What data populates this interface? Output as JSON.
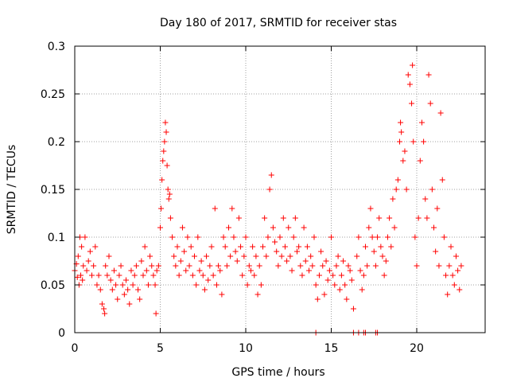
{
  "chart_data": {
    "type": "scatter",
    "title": "Day 180 of 2017, SRMTID for receiver stas",
    "xlabel": "GPS time / hours",
    "ylabel": "SRMTID / TECUs",
    "xlim": [
      0,
      24
    ],
    "ylim": [
      0,
      0.3
    ],
    "xticks": [
      0,
      5,
      10,
      15,
      20
    ],
    "xtick_labels": [
      "0",
      "5",
      "10",
      "15",
      "20"
    ],
    "yticks": [
      0,
      0.05,
      0.1,
      0.15,
      0.2,
      0.25,
      0.3
    ],
    "ytick_labels": [
      "0",
      "0.05",
      "0.1",
      "0.15",
      "0.2",
      "0.25",
      "0.3"
    ],
    "grid": true,
    "marker": "+",
    "color": "#ff0000",
    "series": [
      {
        "name": "SRMTID",
        "points": [
          [
            0.0,
            0.065
          ],
          [
            0.1,
            0.072
          ],
          [
            0.15,
            0.058
          ],
          [
            0.2,
            0.08
          ],
          [
            0.25,
            0.05
          ],
          [
            0.3,
            0.1
          ],
          [
            0.35,
            0.06
          ],
          [
            0.4,
            0.09
          ],
          [
            0.45,
            0.055
          ],
          [
            0.5,
            0.07
          ],
          [
            0.6,
            0.1
          ],
          [
            0.7,
            0.065
          ],
          [
            0.8,
            0.075
          ],
          [
            0.9,
            0.085
          ],
          [
            1.0,
            0.06
          ],
          [
            1.1,
            0.07
          ],
          [
            1.2,
            0.09
          ],
          [
            1.3,
            0.05
          ],
          [
            1.4,
            0.06
          ],
          [
            1.5,
            0.045
          ],
          [
            1.6,
            0.03
          ],
          [
            1.7,
            0.025
          ],
          [
            1.75,
            0.02
          ],
          [
            1.8,
            0.07
          ],
          [
            1.9,
            0.06
          ],
          [
            2.0,
            0.08
          ],
          [
            2.1,
            0.055
          ],
          [
            2.2,
            0.045
          ],
          [
            2.3,
            0.065
          ],
          [
            2.4,
            0.05
          ],
          [
            2.5,
            0.035
          ],
          [
            2.6,
            0.06
          ],
          [
            2.7,
            0.07
          ],
          [
            2.8,
            0.05
          ],
          [
            2.9,
            0.04
          ],
          [
            3.0,
            0.055
          ],
          [
            3.1,
            0.045
          ],
          [
            3.2,
            0.03
          ],
          [
            3.3,
            0.065
          ],
          [
            3.4,
            0.05
          ],
          [
            3.5,
            0.06
          ],
          [
            3.6,
            0.07
          ],
          [
            3.7,
            0.045
          ],
          [
            3.8,
            0.035
          ],
          [
            3.9,
            0.075
          ],
          [
            4.0,
            0.06
          ],
          [
            4.1,
            0.09
          ],
          [
            4.2,
            0.065
          ],
          [
            4.3,
            0.05
          ],
          [
            4.4,
            0.08
          ],
          [
            4.5,
            0.07
          ],
          [
            4.6,
            0.06
          ],
          [
            4.7,
            0.05
          ],
          [
            4.75,
            0.02
          ],
          [
            4.8,
            0.065
          ],
          [
            4.9,
            0.07
          ],
          [
            5.0,
            0.11
          ],
          [
            5.05,
            0.13
          ],
          [
            5.1,
            0.16
          ],
          [
            5.15,
            0.18
          ],
          [
            5.2,
            0.19
          ],
          [
            5.25,
            0.2
          ],
          [
            5.3,
            0.22
          ],
          [
            5.35,
            0.21
          ],
          [
            5.4,
            0.175
          ],
          [
            5.45,
            0.15
          ],
          [
            5.5,
            0.14
          ],
          [
            5.55,
            0.145
          ],
          [
            5.6,
            0.12
          ],
          [
            5.7,
            0.1
          ],
          [
            5.8,
            0.08
          ],
          [
            5.9,
            0.07
          ],
          [
            6.0,
            0.09
          ],
          [
            6.1,
            0.06
          ],
          [
            6.2,
            0.075
          ],
          [
            6.3,
            0.11
          ],
          [
            6.4,
            0.085
          ],
          [
            6.5,
            0.065
          ],
          [
            6.6,
            0.1
          ],
          [
            6.7,
            0.07
          ],
          [
            6.8,
            0.09
          ],
          [
            6.9,
            0.06
          ],
          [
            7.0,
            0.08
          ],
          [
            7.1,
            0.05
          ],
          [
            7.2,
            0.1
          ],
          [
            7.3,
            0.065
          ],
          [
            7.4,
            0.075
          ],
          [
            7.5,
            0.06
          ],
          [
            7.6,
            0.045
          ],
          [
            7.7,
            0.08
          ],
          [
            7.8,
            0.055
          ],
          [
            7.9,
            0.07
          ],
          [
            8.0,
            0.09
          ],
          [
            8.1,
            0.06
          ],
          [
            8.2,
            0.13
          ],
          [
            8.3,
            0.05
          ],
          [
            8.4,
            0.07
          ],
          [
            8.5,
            0.065
          ],
          [
            8.6,
            0.04
          ],
          [
            8.7,
            0.1
          ],
          [
            8.8,
            0.09
          ],
          [
            8.9,
            0.07
          ],
          [
            9.0,
            0.11
          ],
          [
            9.1,
            0.08
          ],
          [
            9.2,
            0.13
          ],
          [
            9.3,
            0.1
          ],
          [
            9.4,
            0.085
          ],
          [
            9.5,
            0.075
          ],
          [
            9.6,
            0.12
          ],
          [
            9.7,
            0.09
          ],
          [
            9.8,
            0.06
          ],
          [
            9.9,
            0.08
          ],
          [
            10.0,
            0.1
          ],
          [
            10.1,
            0.05
          ],
          [
            10.2,
            0.07
          ],
          [
            10.3,
            0.065
          ],
          [
            10.4,
            0.09
          ],
          [
            10.5,
            0.06
          ],
          [
            10.6,
            0.08
          ],
          [
            10.7,
            0.04
          ],
          [
            10.8,
            0.07
          ],
          [
            10.9,
            0.05
          ],
          [
            11.0,
            0.09
          ],
          [
            11.1,
            0.12
          ],
          [
            11.2,
            0.08
          ],
          [
            11.3,
            0.1
          ],
          [
            11.4,
            0.15
          ],
          [
            11.5,
            0.165
          ],
          [
            11.6,
            0.11
          ],
          [
            11.7,
            0.095
          ],
          [
            11.8,
            0.085
          ],
          [
            11.9,
            0.07
          ],
          [
            12.0,
            0.1
          ],
          [
            12.1,
            0.08
          ],
          [
            12.2,
            0.12
          ],
          [
            12.3,
            0.09
          ],
          [
            12.4,
            0.075
          ],
          [
            12.5,
            0.11
          ],
          [
            12.6,
            0.08
          ],
          [
            12.7,
            0.065
          ],
          [
            12.8,
            0.1
          ],
          [
            12.9,
            0.12
          ],
          [
            13.0,
            0.085
          ],
          [
            13.1,
            0.09
          ],
          [
            13.2,
            0.07
          ],
          [
            13.3,
            0.06
          ],
          [
            13.4,
            0.11
          ],
          [
            13.5,
            0.075
          ],
          [
            13.6,
            0.09
          ],
          [
            13.7,
            0.065
          ],
          [
            13.8,
            0.08
          ],
          [
            13.9,
            0.07
          ],
          [
            14.0,
            0.1
          ],
          [
            14.1,
            0.05
          ],
          [
            14.2,
            0.035
          ],
          [
            14.3,
            0.06
          ],
          [
            14.4,
            0.085
          ],
          [
            14.5,
            0.07
          ],
          [
            14.6,
            0.04
          ],
          [
            14.7,
            0.075
          ],
          [
            14.8,
            0.055
          ],
          [
            14.9,
            0.065
          ],
          [
            15.0,
            0.1
          ],
          [
            15.1,
            0.06
          ],
          [
            15.2,
            0.05
          ],
          [
            15.3,
            0.07
          ],
          [
            15.4,
            0.08
          ],
          [
            15.5,
            0.045
          ],
          [
            15.6,
            0.06
          ],
          [
            15.7,
            0.075
          ],
          [
            15.8,
            0.05
          ],
          [
            15.9,
            0.035
          ],
          [
            16.0,
            0.07
          ],
          [
            16.1,
            0.065
          ],
          [
            16.2,
            0.055
          ],
          [
            16.3,
            0.025
          ],
          [
            16.5,
            0.08
          ],
          [
            16.6,
            0.1
          ],
          [
            16.7,
            0.065
          ],
          [
            16.8,
            0.045
          ],
          [
            16.9,
            0.06
          ],
          [
            17.0,
            0.09
          ],
          [
            17.1,
            0.07
          ],
          [
            17.2,
            0.11
          ],
          [
            17.3,
            0.13
          ],
          [
            17.4,
            0.1
          ],
          [
            17.5,
            0.085
          ],
          [
            17.6,
            0.07
          ],
          [
            17.7,
            0.1
          ],
          [
            17.8,
            0.12
          ],
          [
            17.9,
            0.09
          ],
          [
            18.0,
            0.08
          ],
          [
            18.1,
            0.06
          ],
          [
            18.2,
            0.075
          ],
          [
            18.3,
            0.1
          ],
          [
            18.4,
            0.12
          ],
          [
            18.5,
            0.09
          ],
          [
            18.6,
            0.14
          ],
          [
            18.7,
            0.11
          ],
          [
            18.8,
            0.15
          ],
          [
            18.9,
            0.16
          ],
          [
            19.0,
            0.2
          ],
          [
            19.05,
            0.22
          ],
          [
            19.1,
            0.21
          ],
          [
            19.2,
            0.18
          ],
          [
            19.3,
            0.19
          ],
          [
            19.4,
            0.15
          ],
          [
            19.5,
            0.27
          ],
          [
            19.6,
            0.26
          ],
          [
            19.7,
            0.24
          ],
          [
            19.75,
            0.28
          ],
          [
            19.8,
            0.2
          ],
          [
            19.9,
            0.1
          ],
          [
            20.0,
            0.07
          ],
          [
            20.1,
            0.12
          ],
          [
            20.2,
            0.18
          ],
          [
            20.3,
            0.22
          ],
          [
            20.4,
            0.2
          ],
          [
            20.5,
            0.14
          ],
          [
            20.6,
            0.12
          ],
          [
            20.7,
            0.27
          ],
          [
            20.8,
            0.24
          ],
          [
            20.9,
            0.15
          ],
          [
            21.0,
            0.11
          ],
          [
            21.1,
            0.085
          ],
          [
            21.2,
            0.13
          ],
          [
            21.3,
            0.07
          ],
          [
            21.4,
            0.23
          ],
          [
            21.5,
            0.16
          ],
          [
            21.6,
            0.1
          ],
          [
            21.7,
            0.06
          ],
          [
            21.8,
            0.04
          ],
          [
            21.9,
            0.07
          ],
          [
            22.0,
            0.09
          ],
          [
            22.1,
            0.06
          ],
          [
            22.2,
            0.05
          ],
          [
            22.3,
            0.08
          ],
          [
            22.4,
            0.065
          ],
          [
            22.5,
            0.045
          ],
          [
            22.6,
            0.07
          ],
          [
            14.1,
            0.0
          ],
          [
            16.3,
            0.0
          ],
          [
            16.6,
            0.0
          ],
          [
            16.9,
            0.0
          ],
          [
            17.0,
            0.0
          ],
          [
            17.6,
            0.0
          ],
          [
            17.7,
            0.0
          ]
        ]
      }
    ]
  }
}
